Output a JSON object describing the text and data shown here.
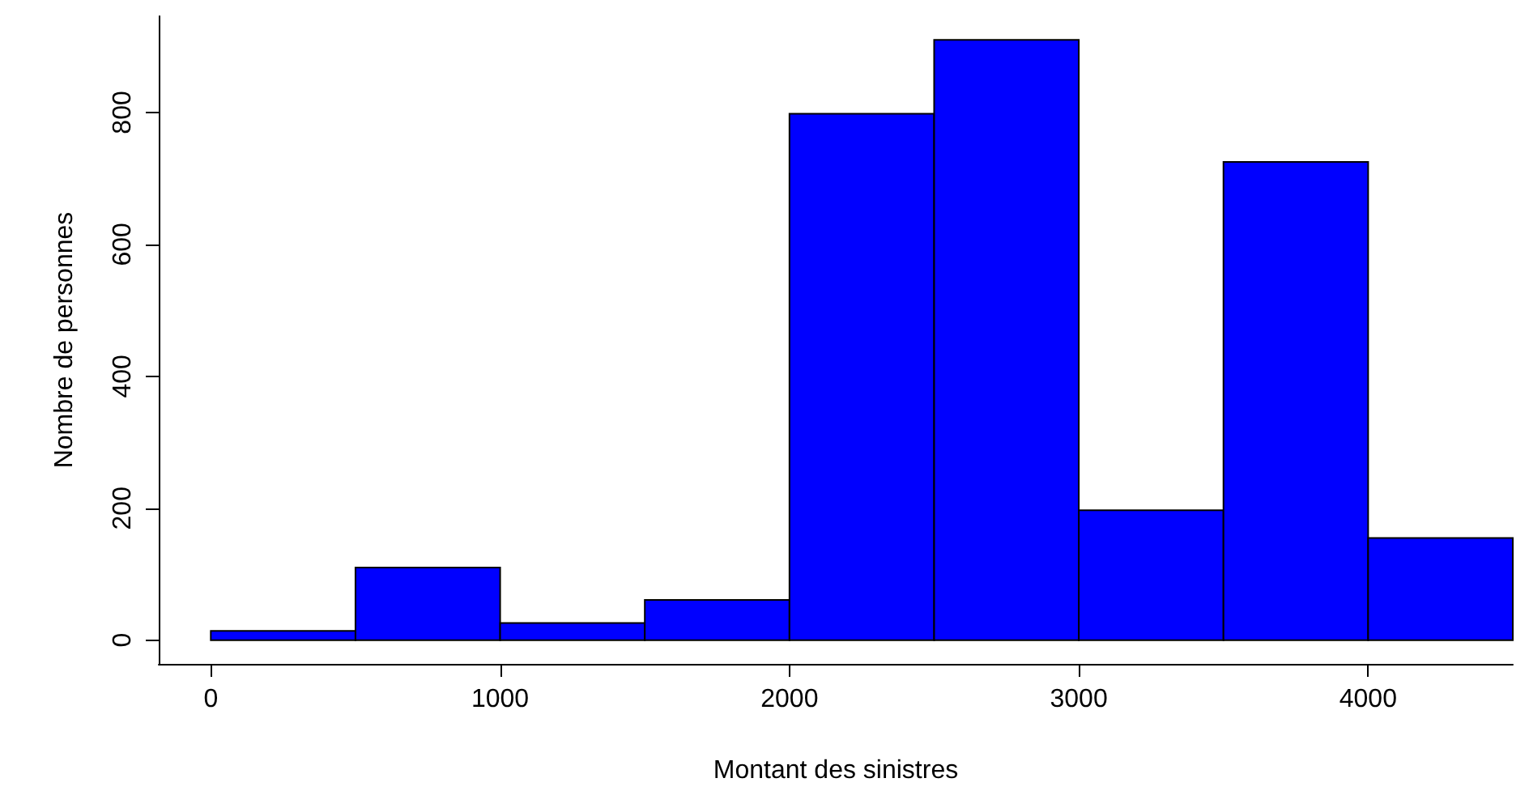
{
  "chart_data": {
    "type": "histogram",
    "xlabel": "Montant des sinistres",
    "ylabel": "Nombre de personnes",
    "bins": [
      0,
      500,
      1000,
      1500,
      2000,
      2500,
      3000,
      3500,
      4000,
      4500
    ],
    "values": [
      14,
      110,
      26,
      61,
      798,
      910,
      197,
      725,
      155
    ],
    "color": "#0000ff",
    "xlim": [
      -180,
      4500
    ],
    "ylim": [
      -36,
      946
    ],
    "xticks": [
      0,
      1000,
      2000,
      3000,
      4000
    ],
    "yticks": [
      0,
      200,
      400,
      600,
      800
    ],
    "grid": false
  }
}
